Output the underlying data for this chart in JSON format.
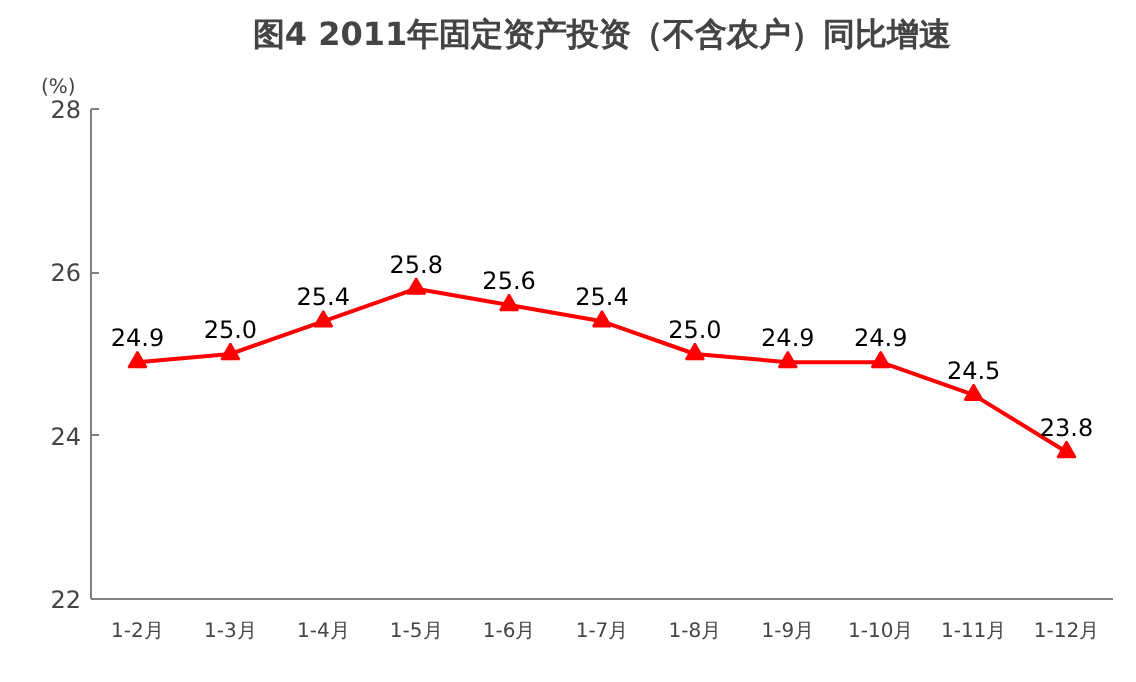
{
  "chart_data": {
    "type": "line",
    "title": "图4 2011年固定资产投资（不含农户）同比增速",
    "ylabel": "(%)",
    "categories": [
      "1-2月",
      "1-3月",
      "1-4月",
      "1-5月",
      "1-6月",
      "1-7月",
      "1-8月",
      "1-9月",
      "1-10月",
      "1-11月",
      "1-12月"
    ],
    "series": [
      {
        "color": "#ff0000",
        "values": [
          24.9,
          25.0,
          25.4,
          25.8,
          25.6,
          25.4,
          25.0,
          24.9,
          24.9,
          24.5,
          23.8
        ],
        "value_labels": [
          "24.9",
          "25.0",
          "25.4",
          "25.8",
          "25.6",
          "25.4",
          "25.0",
          "24.9",
          "24.9",
          "24.5",
          "23.8"
        ]
      }
    ],
    "ylim": [
      22,
      28
    ],
    "yticks": [
      22,
      24,
      26,
      28
    ],
    "grid": false,
    "marker": "triangle",
    "line_style": "solid"
  }
}
